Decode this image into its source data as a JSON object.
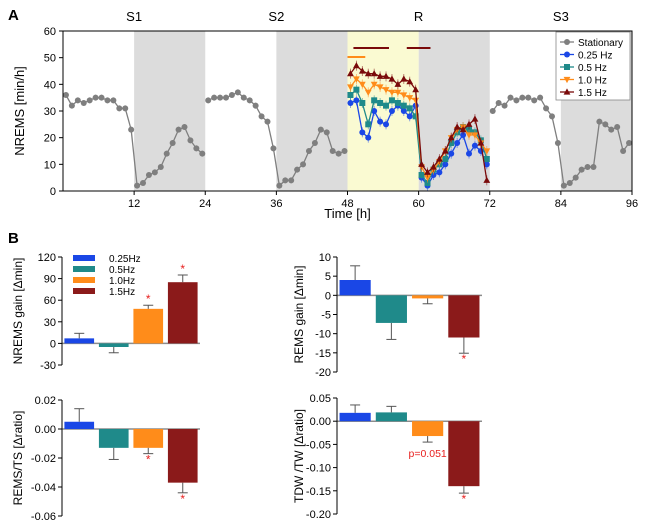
{
  "colors": {
    "stationary": "#7f7f7f",
    "hz025": "#1a47e6",
    "hz05": "#1f8a8a",
    "hz10": "#ff8c1a",
    "hz15": "#7a0a0a",
    "gray_band": "#dcdcdc",
    "yellow_band": "#fafad2",
    "sig_red": "#e8201f",
    "bar_red": "#8b1a1a"
  },
  "panel_letters": {
    "a": "A",
    "b": "B"
  },
  "chart_data": [
    {
      "id": "timecourse",
      "type": "line",
      "title": "",
      "xlabel": "Time [h]",
      "ylabel": "NREMS [min/h]",
      "xlim": [
        0,
        96
      ],
      "ylim": [
        0,
        60
      ],
      "xticks": [
        12,
        24,
        36,
        48,
        60,
        72,
        84,
        96
      ],
      "yticks": [
        0,
        10,
        20,
        30,
        40,
        50,
        60
      ],
      "phase_labels": [
        {
          "label": "S1",
          "x": 12
        },
        {
          "label": "S2",
          "x": 36
        },
        {
          "label": "R",
          "x": 60
        },
        {
          "label": "S3",
          "x": 84
        }
      ],
      "dark_periods": [
        [
          12,
          24
        ],
        [
          36,
          48
        ],
        [
          60,
          72
        ],
        [
          84,
          96
        ]
      ],
      "highlight_period": [
        48,
        60
      ],
      "legend_position": "top-right",
      "significance_bars": [
        {
          "start": 48,
          "end": 51,
          "color_key": "hz10"
        },
        {
          "start": 49,
          "end": 55,
          "color_key": "hz15"
        },
        {
          "start": 58,
          "end": 62,
          "color_key": "hz15"
        }
      ],
      "series": [
        {
          "name": "Stationary",
          "color_key": "stationary",
          "marker": "circle",
          "segments": [
            {
              "x0": 0.5,
              "values": [
                36,
                32,
                34,
                33,
                34,
                35,
                35,
                34,
                34,
                31,
                31,
                23,
                2,
                3,
                6,
                7,
                9,
                14,
                18,
                23,
                24,
                19,
                16,
                14
              ]
            },
            {
              "x0": 24.5,
              "values": [
                34,
                35,
                35,
                35,
                36,
                37,
                35,
                34,
                32,
                28,
                26,
                16,
                2,
                4,
                4,
                8,
                10,
                15,
                18,
                23,
                22,
                15,
                14,
                15
              ]
            },
            {
              "x0": 72.5,
              "values": [
                30,
                33,
                32,
                35,
                34,
                35,
                35,
                34,
                35,
                31,
                28,
                18,
                2,
                3,
                5,
                8,
                9,
                9,
                26,
                25,
                23,
                24,
                15,
                18
              ]
            }
          ]
        },
        {
          "name": "0.25 Hz",
          "color_key": "hz025",
          "marker": "circle",
          "segments": [
            {
              "x0": 48.5,
              "values": [
                33,
                34,
                22,
                20,
                30,
                26,
                25,
                30,
                32,
                30,
                28,
                32,
                5,
                2,
                6,
                7,
                10,
                14,
                18,
                21,
                14,
                17,
                15,
                10
              ]
            }
          ]
        },
        {
          "name": "0.5 Hz",
          "color_key": "hz05",
          "marker": "square",
          "segments": [
            {
              "x0": 48.5,
              "values": [
                36,
                38,
                33,
                25,
                34,
                33,
                32,
                34,
                33,
                32,
                31,
                28,
                6,
                3,
                8,
                10,
                12,
                18,
                22,
                24,
                23,
                22,
                19,
                12
              ]
            }
          ]
        },
        {
          "name": "1.0 Hz",
          "color_key": "hz10",
          "marker": "triangle-down",
          "segments": [
            {
              "x0": 48.5,
              "values": [
                39,
                42,
                40,
                37,
                40,
                39,
                38,
                37,
                37,
                36,
                35,
                34,
                9,
                5,
                8,
                11,
                15,
                20,
                23,
                24,
                21,
                21,
                18,
                15
              ]
            }
          ]
        },
        {
          "name": "1.5 Hz",
          "color_key": "hz15",
          "marker": "triangle-up",
          "segments": [
            {
              "x0": 48.5,
              "values": [
                44,
                47,
                45,
                44,
                44,
                43,
                43,
                42,
                40,
                42,
                41,
                38,
                10,
                7,
                9,
                12,
                15,
                20,
                24,
                23,
                25,
                27,
                18,
                4
              ]
            }
          ]
        }
      ]
    },
    {
      "id": "nrems_gain",
      "type": "bar",
      "ylabel": "NREMS gain [Δmin]",
      "ylim": [
        -30,
        120
      ],
      "yticks": [
        "-30",
        "0",
        "30",
        "60",
        "90",
        "120"
      ],
      "legend_position": "top-left",
      "categories": [
        "0.25Hz",
        "0.5Hz",
        "1.0Hz",
        "1.5Hz"
      ],
      "values": [
        7,
        -5,
        48,
        85
      ],
      "errors": [
        7,
        8,
        5,
        10
      ],
      "significant": [
        false,
        false,
        true,
        true
      ],
      "annotations": []
    },
    {
      "id": "rems_gain",
      "type": "bar",
      "ylabel": "REMS gain [Δmin]",
      "ylim": [
        -20,
        10
      ],
      "yticks": [
        "-20",
        "-15",
        "-10",
        "-5",
        "0",
        "5",
        "10"
      ],
      "categories": [
        "0.25Hz",
        "0.5Hz",
        "1.0Hz",
        "1.5Hz"
      ],
      "values": [
        4,
        -7.2,
        -0.8,
        -11
      ],
      "errors": [
        3.7,
        4.3,
        1.4,
        4.1
      ],
      "significant": [
        false,
        false,
        false,
        true
      ],
      "annotations": []
    },
    {
      "id": "rems_ts",
      "type": "bar",
      "ylabel": "REMS/TS [Δratio]",
      "ylim": [
        -0.06,
        0.02
      ],
      "yticks": [
        "-0.06",
        "-0.04",
        "-0.02",
        "0.00",
        "0.02"
      ],
      "categories": [
        "0.25Hz",
        "0.5Hz",
        "1.0Hz",
        "1.5Hz"
      ],
      "values": [
        0.005,
        -0.013,
        -0.013,
        -0.037
      ],
      "errors": [
        0.009,
        0.008,
        0.004,
        0.007
      ],
      "significant": [
        false,
        false,
        true,
        true
      ],
      "annotations": []
    },
    {
      "id": "tdw_tw",
      "type": "bar",
      "ylabel": "TDW /TW [Δratio]",
      "ylim": [
        -0.2,
        0.05
      ],
      "yticks": [
        "-0.20",
        "-0.15",
        "-0.10",
        "-0.05",
        "0.00",
        "0.05"
      ],
      "categories": [
        "0.25Hz",
        "0.5Hz",
        "1.0Hz",
        "1.5Hz"
      ],
      "values": [
        0.018,
        0.019,
        -0.032,
        -0.14
      ],
      "errors": [
        0.017,
        0.013,
        0.013,
        0.015
      ],
      "significant": [
        false,
        false,
        false,
        true
      ],
      "annotations": [
        {
          "bar_index": 2,
          "text": "p=0.051"
        }
      ]
    }
  ]
}
